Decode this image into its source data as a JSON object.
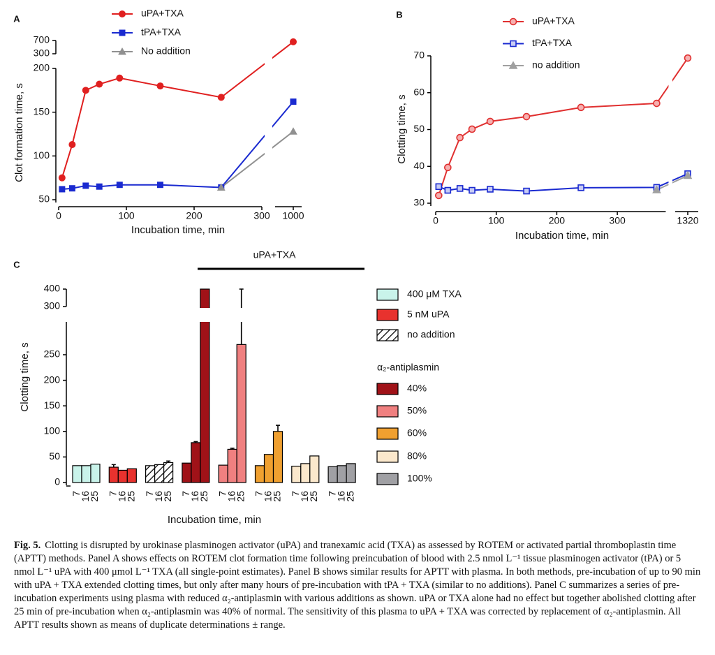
{
  "chart_data": [
    {
      "type": "line",
      "panel": "A",
      "xlabel": "Incubation time, min",
      "ylabel": "Clot formation time, s",
      "x": [
        5,
        20,
        40,
        60,
        90,
        150,
        240,
        1000
      ],
      "series": [
        {
          "name": "uPA+TXA",
          "color": "#e02020",
          "marker": "circle",
          "values": [
            75,
            113,
            175,
            182,
            189,
            180,
            167,
            660
          ]
        },
        {
          "name": "tPA+TXA",
          "color": "#1a2ad0",
          "marker": "square",
          "values": [
            62,
            63,
            66,
            65,
            67,
            67,
            64,
            162
          ]
        },
        {
          "name": "No addition",
          "color": "#909090",
          "marker": "triangle",
          "values": [
            null,
            null,
            null,
            null,
            null,
            null,
            64,
            128
          ]
        }
      ],
      "xlim": [
        0,
        1000
      ],
      "x_break": [
        300,
        1000
      ],
      "xticks": [
        0,
        100,
        200,
        300,
        1000
      ],
      "ylim": [
        50,
        700
      ],
      "y_break": [
        200,
        300
      ],
      "yticks": [
        50,
        100,
        150,
        200,
        300,
        700
      ],
      "open_markers": false
    },
    {
      "type": "line",
      "panel": "B",
      "xlabel": "Incubation time, min",
      "ylabel": "Clotting time, s",
      "x": [
        5,
        20,
        40,
        60,
        90,
        150,
        240,
        365,
        1320
      ],
      "series": [
        {
          "name": "uPA+TXA",
          "color": "#e03030",
          "marker": "circle",
          "values": [
            32.1,
            39.7,
            47.8,
            50.1,
            52.2,
            53.5,
            56,
            57.1,
            69.4
          ]
        },
        {
          "name": "tPA+TXA",
          "color": "#1a2ad0",
          "marker": "square",
          "values": [
            34.5,
            33.5,
            34,
            33.5,
            33.8,
            33.3,
            34.2,
            34.3,
            38
          ]
        },
        {
          "name": "no addition",
          "color": "#a0a0a0",
          "marker": "triangle",
          "values": [
            null,
            null,
            null,
            null,
            null,
            null,
            null,
            33.6,
            37.5
          ]
        }
      ],
      "xlim": [
        0,
        1320
      ],
      "x_break": [
        380,
        1320
      ],
      "xticks": [
        0,
        100,
        200,
        300,
        1320
      ],
      "ylim": [
        30,
        70
      ],
      "yticks": [
        30,
        40,
        50,
        60,
        70
      ],
      "open_markers": true
    },
    {
      "type": "bar",
      "panel": "C",
      "xlabel": "Incubation time, min",
      "ylabel": "Clotting time, s",
      "annotation": "uPA+TXA",
      "legend_title": "α₂-antiplasmin",
      "categories": [
        "7",
        "16",
        "25"
      ],
      "series": [
        {
          "name": "400 μM TXA",
          "color": "#c9f3ea",
          "values": [
            33,
            33,
            36
          ],
          "errors": [
            null,
            null,
            null
          ]
        },
        {
          "name": "5 nM uPA",
          "color": "#e8322e",
          "values": [
            30,
            24,
            27
          ],
          "errors": [
            5,
            null,
            null
          ]
        },
        {
          "name": "no addition",
          "color": "#ffffff",
          "hatch": true,
          "values": [
            33,
            35,
            39
          ],
          "errors": [
            null,
            null,
            3
          ]
        },
        {
          "name": "40%",
          "color": "#a01218",
          "values": [
            38,
            78,
            400
          ],
          "errors": [
            null,
            2,
            null
          ]
        },
        {
          "name": "50%",
          "color": "#f08080",
          "values": [
            34,
            65,
            270
          ],
          "errors": [
            null,
            2,
            130
          ]
        },
        {
          "name": "60%",
          "color": "#f0a030",
          "values": [
            33,
            55,
            100
          ],
          "errors": [
            null,
            null,
            12
          ]
        },
        {
          "name": "80%",
          "color": "#fbe8cc",
          "values": [
            32,
            37,
            52
          ],
          "errors": [
            null,
            null,
            null
          ]
        },
        {
          "name": "100%",
          "color": "#a0a0a4",
          "values": [
            31,
            33,
            37
          ],
          "errors": [
            null,
            null,
            null
          ]
        }
      ],
      "ylim": [
        0,
        400
      ],
      "y_break": [
        250,
        300
      ],
      "yticks": [
        0,
        50,
        100,
        150,
        200,
        250,
        300,
        400
      ]
    }
  ],
  "caption": {
    "label": "Fig. 5.",
    "text": "Clotting is disrupted by urokinase plasminogen activator (uPA) and tranexamic acid (TXA) as assessed by ROTEM or activated partial thromboplastin time (APTT) methods. Panel A shows effects on ROTEM clot formation time following preincubation of blood with 2.5 nmol L⁻¹ tissue plasminogen activator (tPA) or 5 nmol L⁻¹ uPA with 400 μmol L⁻¹ TXA (all single-point estimates). Panel B shows similar results for APTT with plasma. In both methods, pre-incubation of up to 90 min with uPA + TXA extended clotting times, but only after many hours of pre-incubation with tPA + TXA (similar to no additions). Panel C summarizes a series of pre-incubation experiments using plasma with reduced α₂-antiplasmin with various additions as shown. uPA or TXA alone had no effect but together abolished clotting after 25 min of pre-incubation when α₂-antiplasmin was 40% of normal. The sensitivity of this plasma to uPA + TXA was corrected by replacement of α₂-antiplasmin. All APTT results shown as means of duplicate determinations ± range."
  }
}
